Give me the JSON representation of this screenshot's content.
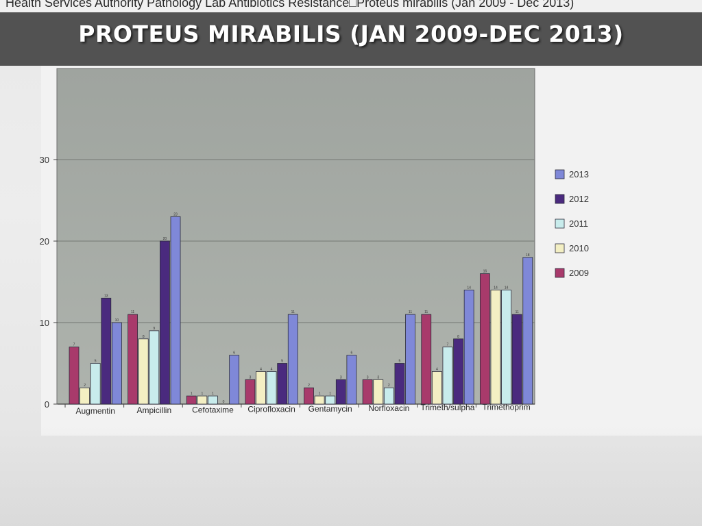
{
  "photo_header": "Health Services Authority Pathology Lab Antibiotics Resistance□Proteus mirabilis (Jan 2009 - Dec 2013)",
  "slide_title": "PROTEUS MIRABILIS (JAN 2009-DEC 2013)",
  "colors": {
    "plot_background": "#a3a8a4",
    "2009": "#a83a6b",
    "2010": "#f3efc3",
    "2011": "#c8ecec",
    "2012": "#4a2a7e",
    "2013": "#7f88d8"
  },
  "chart_data": {
    "type": "bar",
    "title": "",
    "xlabel": "",
    "ylabel": "",
    "ylim": [
      0,
      38
    ],
    "yticks": [
      0,
      10,
      20,
      30
    ],
    "grid": true,
    "legend_position": "right",
    "categories": [
      "Augmentin",
      "Ampicillin",
      "Cefotaxime",
      "Ciprofloxacin",
      "Gentamycin",
      "Norfloxacin",
      "Trimeth/sulpha",
      "Trimethoprim"
    ],
    "series": [
      {
        "name": "2009",
        "values": [
          7,
          11,
          1,
          3,
          2,
          3,
          11,
          16
        ]
      },
      {
        "name": "2010",
        "values": [
          2,
          8,
          1,
          4,
          1,
          3,
          4,
          14
        ]
      },
      {
        "name": "2011",
        "values": [
          5,
          9,
          1,
          4,
          1,
          2,
          7,
          14
        ]
      },
      {
        "name": "2012",
        "values": [
          13,
          20,
          0,
          5,
          3,
          5,
          8,
          11
        ]
      },
      {
        "name": "2013",
        "values": [
          10,
          23,
          6,
          11,
          6,
          11,
          14,
          18
        ]
      }
    ],
    "legend_order": [
      "2013",
      "2012",
      "2011",
      "2010",
      "2009"
    ]
  }
}
